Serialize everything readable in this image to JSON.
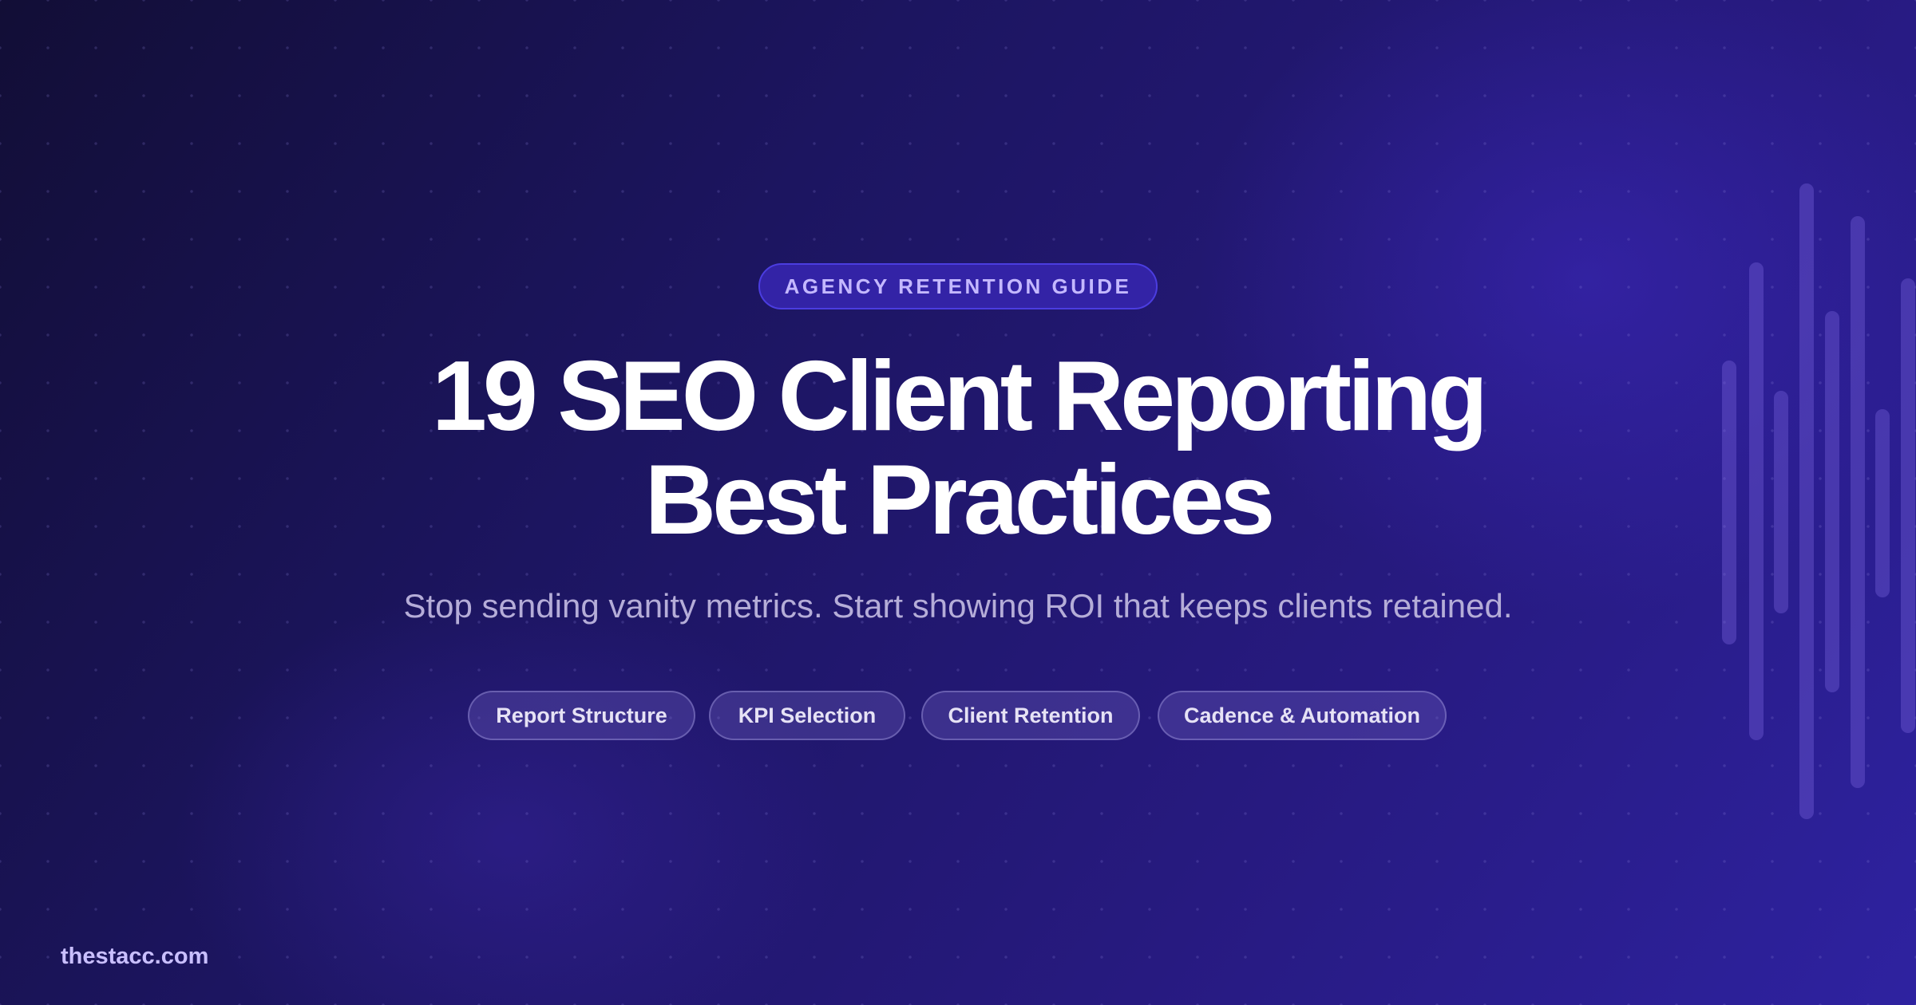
{
  "badge": "AGENCY RETENTION GUIDE",
  "title": {
    "line1": "19 SEO Client Reporting",
    "line2": "Best Practices"
  },
  "subtitle": "Stop sending vanity metrics. Start showing ROI that keeps clients retained.",
  "chips": [
    "Report Structure",
    "KPI Selection",
    "Client Retention",
    "Cadence & Automation"
  ],
  "footer": "thestacc.com",
  "colors": {
    "accent": "#4b3de0",
    "badge_text": "#c4b8ff",
    "background": "#1c1560"
  }
}
